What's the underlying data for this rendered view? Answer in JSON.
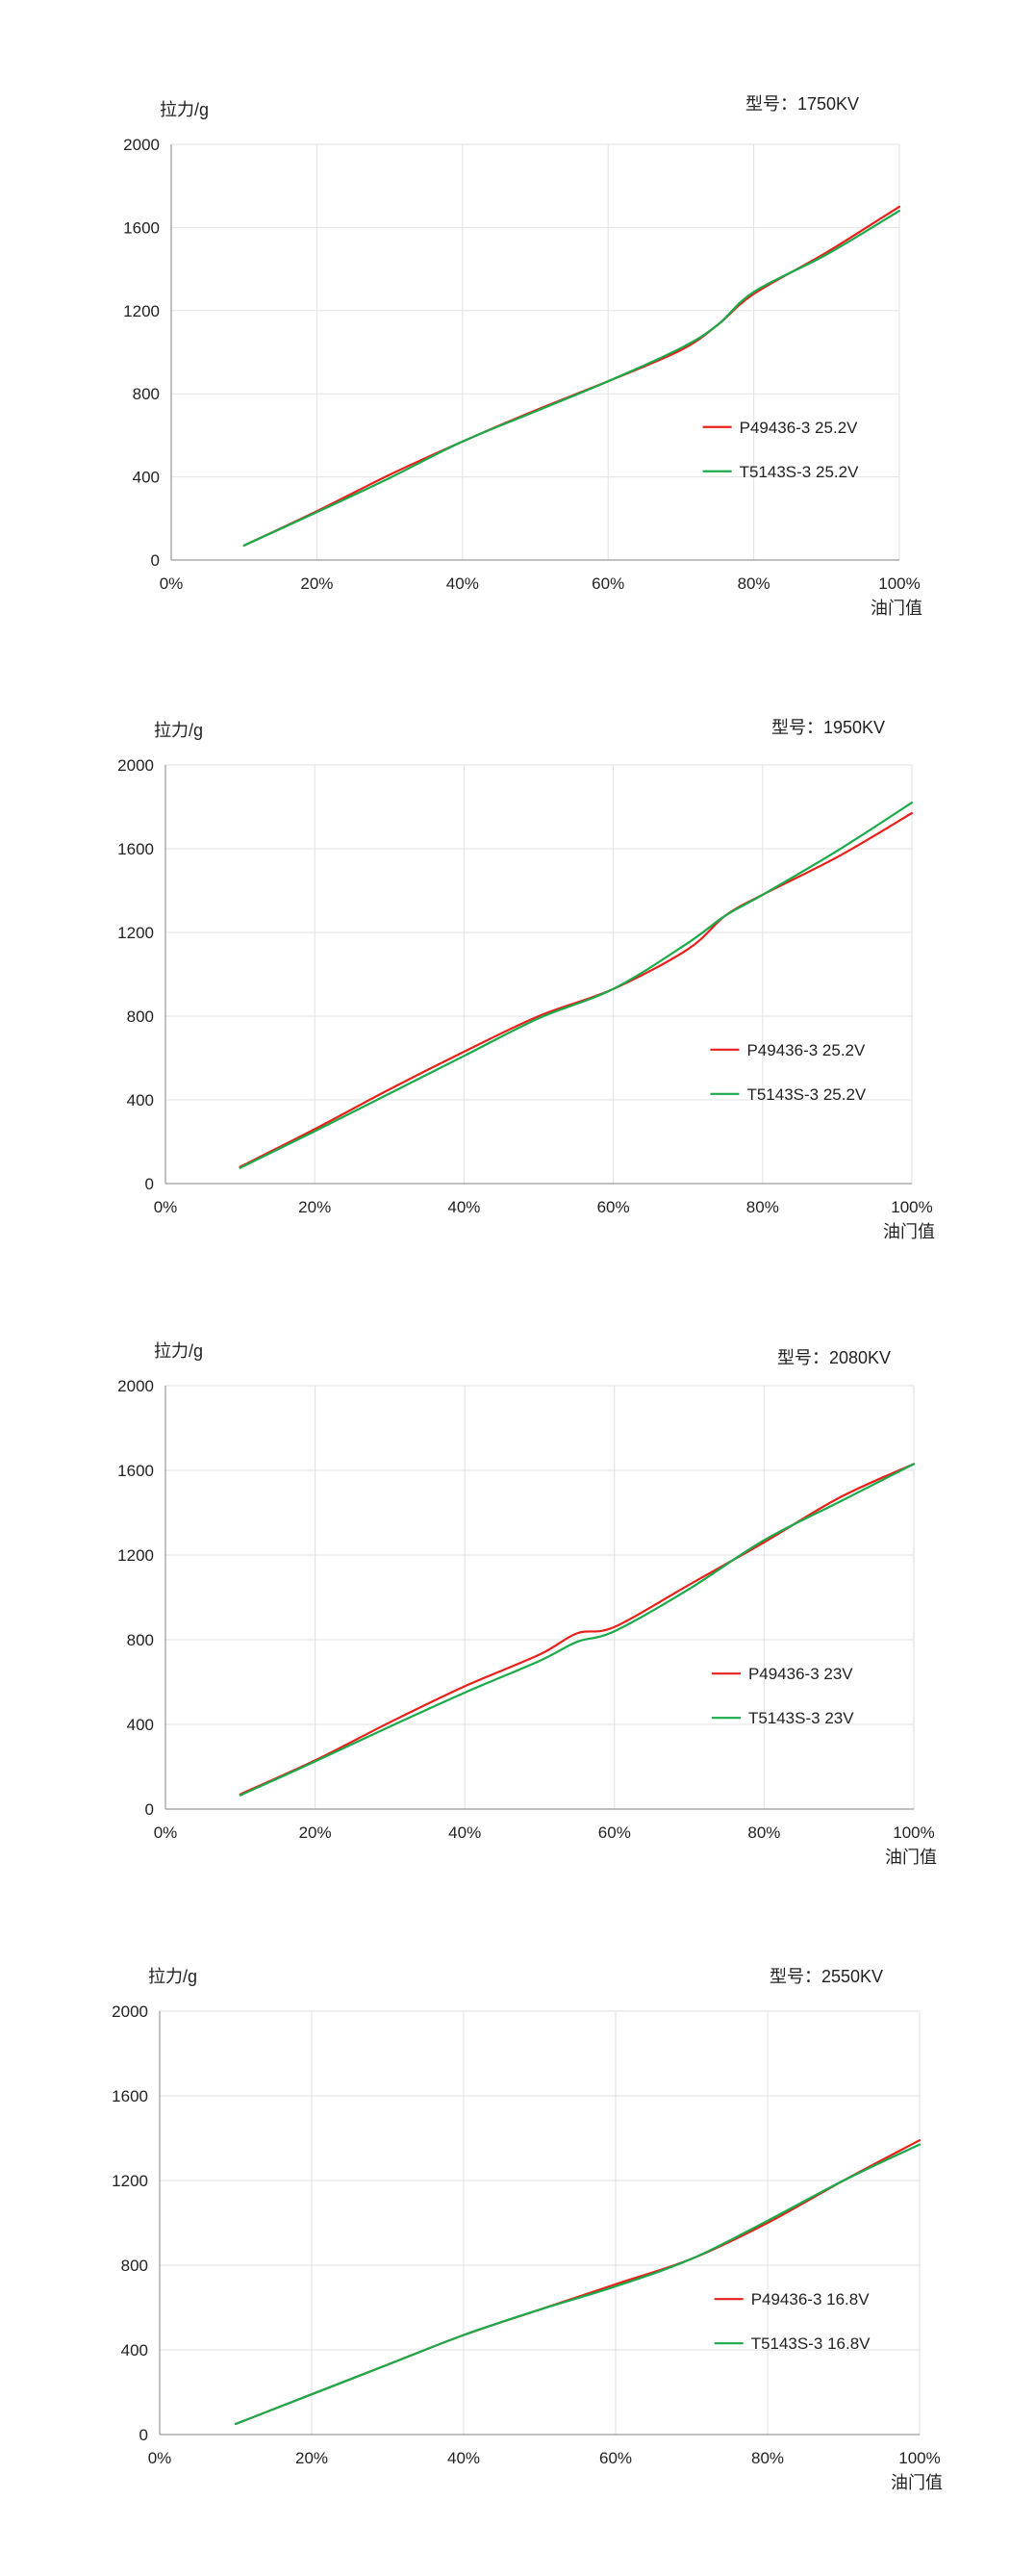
{
  "charts": [
    {
      "model_label": "型号：1750KV",
      "ylabel": "拉力/g",
      "xlabel": "油门值"
    },
    {
      "model_label": "型号：1950KV",
      "ylabel": "拉力/g",
      "xlabel": "油门值"
    },
    {
      "model_label": "型号：2080KV",
      "ylabel": "拉力/g",
      "xlabel": "油门值"
    },
    {
      "model_label": "型号：2550KV",
      "ylabel": "拉力/g",
      "xlabel": "油门值"
    }
  ],
  "chart_data": [
    {
      "type": "line",
      "title": "型号：1750KV",
      "xlabel": "油门值",
      "ylabel": "拉力/g",
      "x": [
        10,
        20,
        30,
        40,
        50,
        60,
        70,
        75,
        80,
        90,
        100
      ],
      "xlim": [
        0,
        100
      ],
      "ylim": [
        0,
        2000
      ],
      "xticks": [
        "0%",
        "20%",
        "40%",
        "60%",
        "80%",
        "100%"
      ],
      "yticks": [
        "0",
        "400",
        "800",
        "1200",
        "1600",
        "2000"
      ],
      "series": [
        {
          "name": "P49436-3 25.2V",
          "color": "#e8201a",
          "values": [
            70,
            235,
            410,
            570,
            720,
            860,
            1010,
            1130,
            1280,
            1480,
            1700
          ]
        },
        {
          "name": "T5143S-3 25.2V",
          "color": "#1aaa4a",
          "values": [
            70,
            230,
            395,
            570,
            715,
            860,
            1020,
            1130,
            1290,
            1470,
            1680
          ]
        }
      ],
      "grid": true,
      "legend": "right"
    },
    {
      "type": "line",
      "title": "型号：1950KV",
      "xlabel": "油门值",
      "ylabel": "拉力/g",
      "x": [
        10,
        20,
        30,
        40,
        50,
        60,
        70,
        75,
        80,
        90,
        100
      ],
      "xlim": [
        0,
        100
      ],
      "ylim": [
        0,
        2000
      ],
      "xticks": [
        "0%",
        "20%",
        "40%",
        "60%",
        "80%",
        "100%"
      ],
      "yticks": [
        "0",
        "400",
        "800",
        "1200",
        "1600",
        "2000"
      ],
      "series": [
        {
          "name": "P49436-3 25.2V",
          "color": "#e8201a",
          "values": [
            80,
            260,
            450,
            630,
            800,
            930,
            1120,
            1280,
            1380,
            1560,
            1770
          ]
        },
        {
          "name": "T5143S-3 25.2V",
          "color": "#1aaa4a",
          "values": [
            75,
            250,
            430,
            610,
            790,
            930,
            1150,
            1280,
            1380,
            1590,
            1820
          ]
        }
      ],
      "grid": true,
      "legend": "right"
    },
    {
      "type": "line",
      "title": "型号：2080KV",
      "xlabel": "油门值",
      "ylabel": "拉力/g",
      "x": [
        10,
        20,
        30,
        40,
        50,
        55,
        60,
        70,
        80,
        90,
        100
      ],
      "xlim": [
        0,
        100
      ],
      "ylim": [
        0,
        2000
      ],
      "xticks": [
        "0%",
        "20%",
        "40%",
        "60%",
        "80%",
        "100%"
      ],
      "yticks": [
        "0",
        "400",
        "800",
        "1200",
        "1600",
        "2000"
      ],
      "series": [
        {
          "name": "P49436-3 23V",
          "color": "#e8201a",
          "values": [
            70,
            230,
            410,
            580,
            730,
            830,
            860,
            1060,
            1260,
            1470,
            1630
          ]
        },
        {
          "name": "T5143S-3 23V",
          "color": "#1aaa4a",
          "values": [
            65,
            225,
            390,
            550,
            700,
            790,
            840,
            1040,
            1270,
            1450,
            1630
          ]
        }
      ],
      "grid": true,
      "legend": "right"
    },
    {
      "type": "line",
      "title": "型号：2550KV",
      "xlabel": "油门值",
      "ylabel": "拉力/g",
      "x": [
        10,
        20,
        30,
        40,
        50,
        60,
        70,
        80,
        90,
        100
      ],
      "xlim": [
        0,
        100
      ],
      "ylim": [
        0,
        2000
      ],
      "xticks": [
        "0%",
        "20%",
        "40%",
        "60%",
        "80%",
        "100%"
      ],
      "yticks": [
        "0",
        "400",
        "800",
        "1200",
        "1600",
        "2000"
      ],
      "series": [
        {
          "name": "P49436-3 16.8V",
          "color": "#e8201a",
          "values": [
            50,
            190,
            330,
            470,
            590,
            710,
            830,
            1000,
            1200,
            1390
          ]
        },
        {
          "name": "T5143S-3 16.8V",
          "color": "#1aaa4a",
          "values": [
            50,
            190,
            330,
            470,
            590,
            700,
            830,
            1010,
            1200,
            1370
          ]
        }
      ],
      "grid": true,
      "legend": "right"
    }
  ]
}
